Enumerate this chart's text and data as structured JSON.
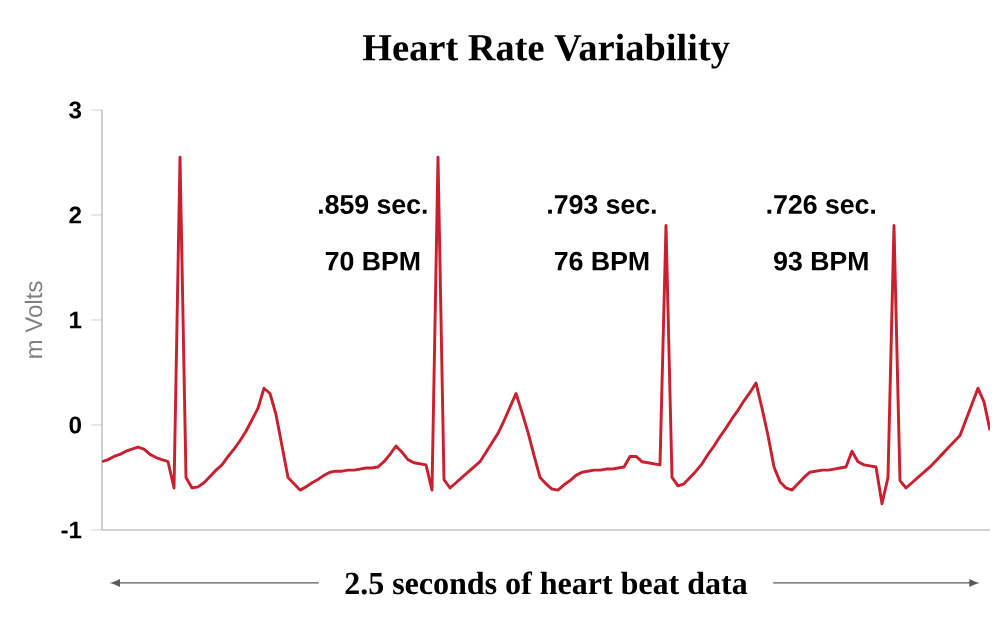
{
  "chart_data": {
    "type": "line",
    "title": "Heart Rate Variability",
    "xlabel": "2.5 seconds of heart beat data",
    "ylabel": "m Volts",
    "categories": [
      null,
      null,
      null,
      null,
      null,
      null,
      null,
      null,
      null,
      null,
      null,
      null,
      null,
      null,
      null,
      null,
      null,
      null,
      null,
      null,
      null,
      null,
      null,
      null,
      null,
      null,
      null,
      null,
      null,
      null,
      null,
      null,
      null,
      null,
      null,
      null,
      null,
      null,
      null,
      null,
      null,
      null,
      null,
      null,
      null,
      null,
      null,
      null,
      null,
      null,
      null,
      null,
      null,
      null,
      null,
      null,
      null,
      null,
      null,
      null,
      null,
      null,
      null,
      null,
      null,
      null,
      null,
      null,
      null,
      null,
      null,
      null,
      null,
      null,
      null,
      null,
      null,
      null,
      null,
      null,
      null,
      null,
      null,
      null,
      null,
      null,
      null,
      null,
      null,
      null,
      null,
      null,
      null,
      null,
      null,
      null,
      null,
      null,
      null,
      null,
      null,
      null,
      null,
      null,
      null,
      null,
      null,
      null,
      null,
      null,
      null,
      null,
      null,
      null,
      null,
      null,
      null,
      null,
      null,
      null,
      null,
      null,
      null,
      null,
      null,
      null,
      null,
      null,
      null,
      null,
      null,
      null,
      null,
      null,
      null,
      null,
      null,
      null,
      null,
      null,
      null,
      null,
      null,
      null,
      null,
      null,
      null,
      null,
      null
    ],
    "series": [
      {
        "color": "#c8202f",
        "values": [
          -0.35,
          -0.33,
          -0.3,
          -0.28,
          -0.25,
          -0.23,
          -0.21,
          -0.23,
          -0.28,
          -0.31,
          -0.33,
          -0.35,
          -0.6,
          2.55,
          -0.5,
          -0.6,
          -0.59,
          -0.55,
          -0.49,
          -0.43,
          -0.38,
          -0.3,
          -0.23,
          -0.15,
          -0.06,
          0.05,
          0.16,
          0.35,
          0.3,
          0.1,
          -0.2,
          -0.5,
          -0.56,
          -0.62,
          -0.59,
          -0.55,
          -0.52,
          -0.48,
          -0.45,
          -0.44,
          -0.44,
          -0.43,
          -0.43,
          -0.42,
          -0.41,
          -0.41,
          -0.4,
          -0.35,
          -0.28,
          -0.2,
          -0.26,
          -0.33,
          -0.36,
          -0.37,
          -0.38,
          -0.62,
          2.55,
          -0.52,
          -0.6,
          -0.55,
          -0.5,
          -0.45,
          -0.4,
          -0.35,
          -0.26,
          -0.17,
          -0.08,
          0.04,
          0.17,
          0.3,
          0.12,
          -0.07,
          -0.29,
          -0.5,
          -0.56,
          -0.61,
          -0.62,
          -0.57,
          -0.53,
          -0.48,
          -0.45,
          -0.44,
          -0.43,
          -0.43,
          -0.42,
          -0.42,
          -0.41,
          -0.4,
          -0.3,
          -0.3,
          -0.35,
          -0.36,
          -0.37,
          -0.38,
          1.9,
          -0.5,
          -0.58,
          -0.56,
          -0.5,
          -0.44,
          -0.37,
          -0.28,
          -0.2,
          -0.11,
          -0.03,
          0.06,
          0.14,
          0.23,
          0.31,
          0.4,
          0.16,
          -0.1,
          -0.4,
          -0.54,
          -0.6,
          -0.62,
          -0.56,
          -0.5,
          -0.45,
          -0.44,
          -0.43,
          -0.43,
          -0.42,
          -0.41,
          -0.4,
          -0.25,
          -0.35,
          -0.38,
          -0.39,
          -0.4,
          -0.75,
          -0.5,
          1.9,
          -0.53,
          -0.6,
          -0.55,
          -0.5,
          -0.45,
          -0.4,
          -0.34,
          -0.28,
          -0.22,
          -0.16,
          -0.1,
          0.05,
          0.2,
          0.35,
          0.22,
          -0.05
        ]
      }
    ],
    "ylim": [
      -1,
      3
    ],
    "yticks": [
      -1,
      0,
      1,
      2,
      3
    ],
    "tick_labels": "y",
    "grid": false,
    "marker": "none",
    "line_style": "solid",
    "annotations": [
      ".859 sec.",
      "70 BPM",
      ".793 sec.",
      "76 BPM",
      ".726 sec.",
      "93 BPM"
    ]
  }
}
